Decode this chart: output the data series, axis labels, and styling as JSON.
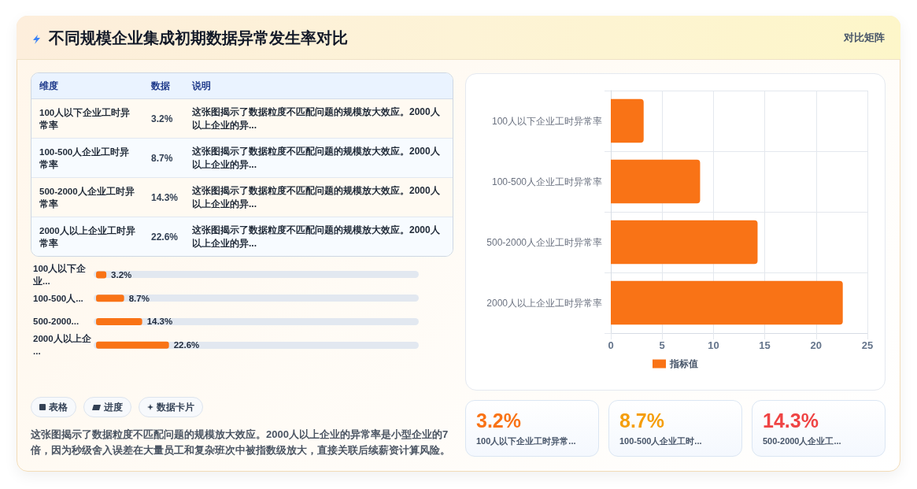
{
  "chart_data": [
    {
      "type": "other",
      "title": "不同规模企业集成初期数据异常发生率对比",
      "annotations": [
        "对比矩阵"
      ]
    },
    {
      "type": "other",
      "categories": [
        "100人以下企业工时异常率",
        "100-500人企业工时异常率",
        "500-2000人企业工时异常率",
        "2000人以上企业工时异常率"
      ],
      "value_labels": [
        "3.2%",
        "8.7%",
        "14.3%",
        "22.6%"
      ],
      "annotations": [
        "维度",
        "数据",
        "说明",
        "这张图揭示了数据粒度不匹配问题的规模放大效应。2000人以上企业的异...",
        "这张图揭示了数据粒度不匹配问题的规模放大效应。2000人以上企业的异...",
        "这张图揭示了数据粒度不匹配问题的规模放大效应。2000人以上企业的异...",
        "这张图揭示了数据粒度不匹配问题的规模放大效应。2000人以上企业的异..."
      ]
    },
    {
      "type": "bar",
      "orientation": "horizontal",
      "categories": [
        "100人以下企业...",
        "100-500人...",
        "500-2000...",
        "2000人以上企..."
      ],
      "values": [
        3.2,
        8.7,
        14.3,
        22.6
      ],
      "value_labels": [
        "3.2%",
        "8.7%",
        "14.3%",
        "22.6%"
      ],
      "color": "#f97316",
      "xlim": [
        0,
        100
      ],
      "tick_labels": "y"
    },
    {
      "type": "other",
      "annotations": [
        "表格",
        "进度",
        "数据卡片",
        "这张图揭示了数据粒度不匹配问题的规模放大效应。2000人以上企业的异常率是小型企业的7倍，因为秒级舍入误差在大量员工和复杂班次中被指数级放大，直接关联后续薪资计算风险。"
      ]
    },
    {
      "type": "bar",
      "orientation": "horizontal",
      "categories": [
        "100人以下企业工时异常率",
        "100-500人企业工时异常率",
        "500-2000人企业工时异常率",
        "2000人以上企业工时异常率"
      ],
      "series": [
        {
          "name": "指标值",
          "color": "#f97316",
          "values": [
            3.2,
            8.7,
            14.3,
            22.6
          ]
        }
      ],
      "xlim": [
        0,
        25
      ],
      "xticks": [
        0,
        5,
        10,
        15,
        20,
        25
      ],
      "grid": true,
      "legend": "bottom"
    },
    {
      "type": "other",
      "categories": [
        "100人以下企业工时异常...",
        "100-500人企业工时...",
        "500-2000人企业工..."
      ],
      "value_labels": [
        "3.2%",
        "8.7%",
        "14.3%"
      ]
    }
  ]
}
